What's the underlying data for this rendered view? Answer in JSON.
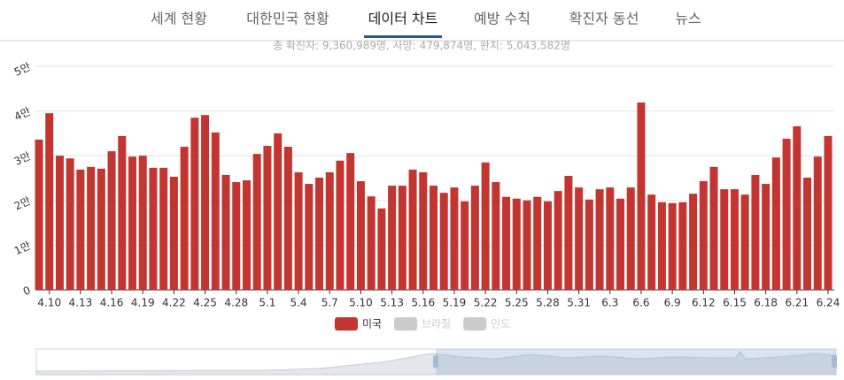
{
  "tabs": [
    "세계 현황",
    "대한민국 현황",
    "데이터 차트",
    "예방 수칙",
    "확진자 동선",
    "뉴스"
  ],
  "active_tab": 2,
  "chart_data": {
    "type": "bar",
    "subtitle": "총 확진자: 9,360,989명, 사망: 479,874명, 완치: 5,043,582명",
    "categories": [
      null,
      "4.10",
      null,
      null,
      "4.13",
      null,
      null,
      "4.16",
      null,
      null,
      "4.19",
      null,
      null,
      "4.22",
      null,
      null,
      "4.25",
      null,
      null,
      "4.28",
      null,
      null,
      "5.1",
      null,
      null,
      "5.4",
      null,
      null,
      "5.7",
      null,
      null,
      "5.10",
      null,
      null,
      "5.13",
      null,
      null,
      "5.16",
      null,
      null,
      "5.19",
      null,
      null,
      "5.22",
      null,
      null,
      "5.25",
      null,
      null,
      "5.28",
      null,
      null,
      "5.31",
      null,
      null,
      "6.3",
      null,
      null,
      "6.6",
      null,
      null,
      "6.9",
      null,
      null,
      "6.12",
      null,
      null,
      "6.15",
      null,
      null,
      "6.18",
      null,
      null,
      "6.21",
      null,
      null,
      "6.24"
    ],
    "series": [
      {
        "name": "미국",
        "color": "#c23531",
        "values": [
          33600,
          39500,
          30000,
          29400,
          26900,
          27500,
          27100,
          31000,
          34400,
          29800,
          30000,
          27300,
          27300,
          25300,
          32000,
          38500,
          39100,
          35200,
          25700,
          24100,
          24500,
          30400,
          32200,
          35000,
          32000,
          26300,
          23700,
          25100,
          26300,
          28900,
          30600,
          24300,
          20900,
          18200,
          23300,
          23300,
          26900,
          26300,
          23300,
          21700,
          22900,
          19800,
          23300,
          28500,
          24100,
          20800,
          20400,
          20000,
          20800,
          19800,
          22100,
          25500,
          22900,
          20200,
          22500,
          22900,
          20400,
          22900,
          41900,
          21300,
          19600,
          19400,
          19600,
          21500,
          24300,
          27500,
          22500,
          22500,
          21300,
          25700,
          23700,
          29600,
          33800,
          36600,
          25100,
          29800,
          34400
        ]
      }
    ],
    "hidden_series": [
      "브라질",
      "인도"
    ],
    "hidden_color": "#cccccc",
    "ylim": [
      0,
      50000
    ],
    "yticks": [
      0,
      {
        "value": 10000,
        "label": "1만"
      },
      {
        "value": 20000,
        "label": "2만"
      },
      {
        "value": 30000,
        "label": "3만"
      },
      {
        "value": 40000,
        "label": "4만"
      },
      {
        "value": 50000,
        "label": "5만"
      }
    ],
    "grid": true
  }
}
